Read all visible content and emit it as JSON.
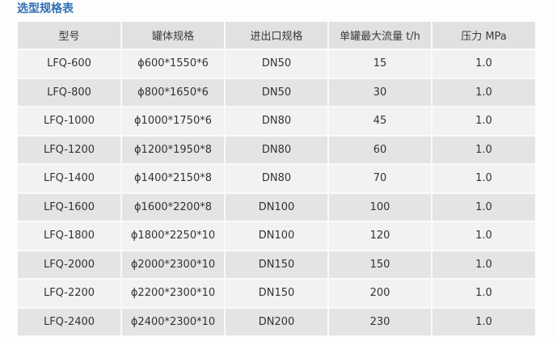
{
  "title": "选型规格表",
  "table": {
    "headers": [
      "型号",
      "罐体规格",
      "进出口规格",
      "单罐最大流量 t/h",
      "压力 MPa"
    ],
    "rows": [
      [
        "LFQ-600",
        "ϕ600*1550*6",
        "DN50",
        "15",
        "1.0"
      ],
      [
        "LFQ-800",
        "ϕ800*1650*6",
        "DN50",
        "30",
        "1.0"
      ],
      [
        "LFQ-1000",
        "ϕ1000*1750*6",
        "DN80",
        "45",
        "1.0"
      ],
      [
        "LFQ-1200",
        "ϕ1200*1950*8",
        "DN80",
        "60",
        "1.0"
      ],
      [
        "LFQ-1400",
        "ϕ1400*2150*8",
        "DN80",
        "70",
        "1.0"
      ],
      [
        "LFQ-1600",
        "ϕ1600*2200*8",
        "DN100",
        "100",
        "1.0"
      ],
      [
        "LFQ-1800",
        "ϕ1800*2250*10",
        "DN100",
        "120",
        "1.0"
      ],
      [
        "LFQ-2000",
        "ϕ2000*2300*10",
        "DN150",
        "150",
        "1.0"
      ],
      [
        "LFQ-2200",
        "ϕ2200*2300*10",
        "DN150",
        "200",
        "1.0"
      ],
      [
        "LFQ-2400",
        "ϕ2400*2300*10",
        "DN200",
        "230",
        "1.0"
      ]
    ]
  },
  "colors": {
    "title": "#2f6fb5",
    "header_bg": "#e1e1e1",
    "row_light": "#f2f2f2",
    "row_dark": "#e4e4e4"
  }
}
